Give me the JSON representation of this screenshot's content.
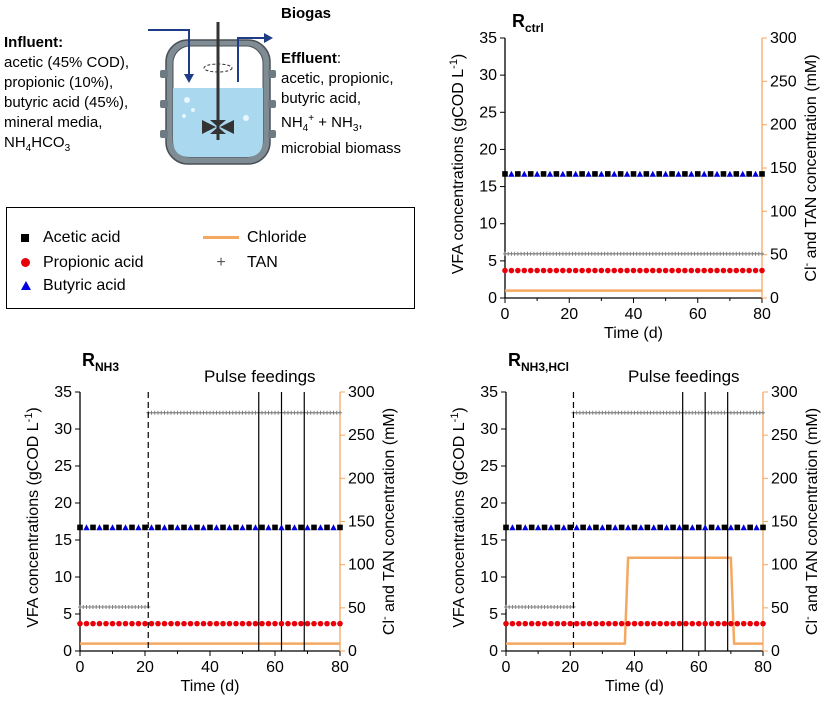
{
  "schematic": {
    "influent_title": "Influent:",
    "influent_lines": [
      "acetic (45% COD),",
      "propionic (10%),",
      "butyric acid (45%),",
      "mineral media,",
      "NH",
      "4",
      "HCO",
      "3"
    ],
    "biogas_label": "Biogas",
    "effluent_title": "Effluent",
    "effluent_colon": ":",
    "effluent_lines": [
      "acetic, propionic,",
      "butyric acid,",
      "NH",
      "4",
      "+",
      " + NH",
      "3",
      ",",
      "microbial biomass"
    ]
  },
  "legend": {
    "items": [
      {
        "label": "Acetic acid",
        "marker": "square",
        "color": "#000000"
      },
      {
        "label": "Propionic acid",
        "marker": "circle",
        "color": "#e8000b"
      },
      {
        "label": "Butyric acid",
        "marker": "triangle",
        "color": "#0000e0"
      },
      {
        "label": "Chloride",
        "marker": "line",
        "color": "#f5a860"
      },
      {
        "label": "TAN",
        "marker": "plus",
        "color": "#808080"
      }
    ]
  },
  "colors": {
    "acetic": "#000000",
    "propionic": "#e8000b",
    "butyric": "#0000e0",
    "chloride": "#f5a860",
    "tan": "#808080",
    "right_axis": "#f5a860"
  },
  "chart_data": [
    {
      "type": "scatter",
      "panel": "Rctrl",
      "title_main": "R",
      "title_sub": "ctrl",
      "annotation": "",
      "xlabel": "Time (d)",
      "ylabel": "VFA concentrations (gCOD L",
      "ylabel_sup": "-1",
      "ylabel_end": ")",
      "y2label_pre": "Cl",
      "y2label_sup": "-",
      "y2label": " and TAN concentration (mM)",
      "xlim": [
        0,
        80
      ],
      "ylim": [
        0,
        35
      ],
      "y2lim": [
        0,
        300
      ],
      "xticks": [
        0,
        20,
        40,
        60,
        80
      ],
      "yticks": [
        0,
        5,
        10,
        15,
        20,
        25,
        30,
        35
      ],
      "y2ticks": [
        0,
        50,
        100,
        150,
        200,
        250,
        300
      ],
      "acetic": 16.7,
      "propionic": 3.7,
      "butyric": 16.7,
      "tan_segments": [
        {
          "x": [
            0,
            80
          ],
          "value": 51
        }
      ],
      "chloride": [
        [
          0,
          8.5
        ],
        [
          80,
          8.5
        ]
      ],
      "dashed_x": [],
      "pulse_x": []
    },
    {
      "type": "scatter",
      "panel": "RNH3",
      "title_main": "R",
      "title_sub": "NH3",
      "annotation": "Pulse feedings",
      "xlabel": "Time (d)",
      "ylabel": "VFA concentrations (gCOD L",
      "ylabel_sup": "-1",
      "ylabel_end": ")",
      "y2label_pre": "Cl",
      "y2label_sup": "-",
      "y2label": " and TAN concentration (mM)",
      "xlim": [
        0,
        80
      ],
      "ylim": [
        0,
        35
      ],
      "y2lim": [
        0,
        300
      ],
      "xticks": [
        0,
        20,
        40,
        60,
        80
      ],
      "yticks": [
        0,
        5,
        10,
        15,
        20,
        25,
        30,
        35
      ],
      "y2ticks": [
        0,
        50,
        100,
        150,
        200,
        250,
        300
      ],
      "acetic": 16.7,
      "propionic": 3.7,
      "butyric": 16.7,
      "tan_segments": [
        {
          "x": [
            0,
            21
          ],
          "value": 51
        },
        {
          "x": [
            21,
            80
          ],
          "value": 276
        }
      ],
      "chloride": [
        [
          0,
          8.5
        ],
        [
          80,
          8.5
        ]
      ],
      "dashed_x": [
        21
      ],
      "pulse_x": [
        55,
        62,
        69
      ]
    },
    {
      "type": "scatter",
      "panel": "RNH3,HCl",
      "title_main": "R",
      "title_sub": "NH3,HCl",
      "annotation": "Pulse feedings",
      "xlabel": "Time (d)",
      "ylabel": "VFA concentrations (gCOD L",
      "ylabel_sup": "-1",
      "ylabel_end": ")",
      "y2label_pre": "Cl",
      "y2label_sup": "-",
      "y2label": " and TAN concentration (mM)",
      "xlim": [
        0,
        80
      ],
      "ylim": [
        0,
        35
      ],
      "y2lim": [
        0,
        300
      ],
      "xticks": [
        0,
        20,
        40,
        60,
        80
      ],
      "yticks": [
        0,
        5,
        10,
        15,
        20,
        25,
        30,
        35
      ],
      "y2ticks": [
        0,
        50,
        100,
        150,
        200,
        250,
        300
      ],
      "acetic": 16.7,
      "propionic": 3.7,
      "butyric": 16.7,
      "tan_segments": [
        {
          "x": [
            0,
            21
          ],
          "value": 51
        },
        {
          "x": [
            21,
            80
          ],
          "value": 276
        }
      ],
      "chloride": [
        [
          0,
          8.5
        ],
        [
          37,
          8.5
        ],
        [
          38,
          108
        ],
        [
          70,
          108
        ],
        [
          71,
          8.5
        ],
        [
          80,
          8.5
        ]
      ],
      "dashed_x": [
        21
      ],
      "pulse_x": [
        55,
        62,
        69
      ]
    }
  ]
}
